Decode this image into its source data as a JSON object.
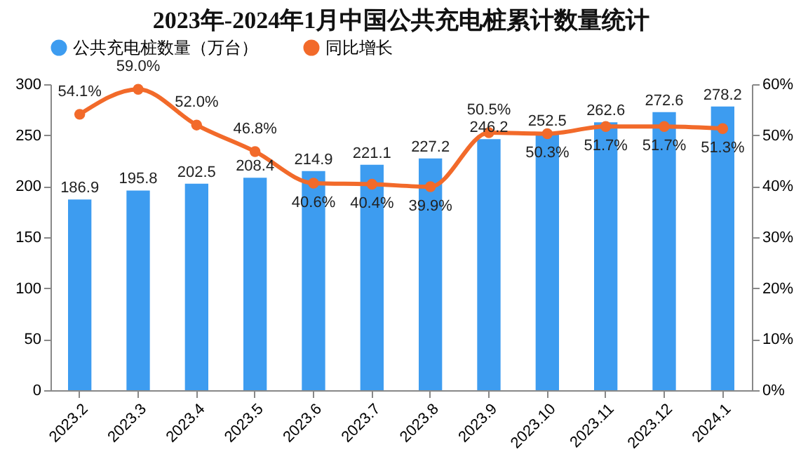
{
  "chart_data": {
    "type": "bar",
    "title": "2023年-2024年1月中国公共充电桩累计数量统计",
    "categories": [
      "2023.2",
      "2023.3",
      "2023.4",
      "2023.5",
      "2023.6",
      "2023.7",
      "2023.8",
      "2023.9",
      "2023.10",
      "2023.11",
      "2023.12",
      "2024.1"
    ],
    "series": [
      {
        "name": "公共充电桩数量（万台）",
        "color": "#3d9cf0",
        "values": [
          186.9,
          195.8,
          202.5,
          208.4,
          214.9,
          221.1,
          227.2,
          246.2,
          252.5,
          262.6,
          272.6,
          278.2
        ],
        "value_labels": [
          "186.9",
          "195.8",
          "202.5",
          "208.4",
          "214.9",
          "221.1",
          "227.2",
          "246.2",
          "252.5",
          "262.6",
          "272.6",
          "278.2"
        ]
      },
      {
        "name": "同比增长",
        "type": "line",
        "axis": "y2",
        "color": "#f26a2a",
        "values": [
          54.1,
          59.0,
          52.0,
          46.8,
          40.6,
          40.4,
          39.9,
          50.5,
          50.3,
          51.7,
          51.7,
          51.3
        ],
        "value_labels": [
          "54.1%",
          "59.0%",
          "52.0%",
          "46.8%",
          "40.6%",
          "40.4%",
          "39.9%",
          "50.5%",
          "50.3%",
          "51.7%",
          "51.7%",
          "51.3%"
        ]
      }
    ],
    "ylim": [
      0,
      300
    ],
    "yticks": [
      0,
      50,
      100,
      150,
      200,
      250,
      300
    ],
    "y2lim": [
      0,
      60
    ],
    "y2ticks": [
      {
        "value": 0,
        "label": "0%"
      },
      {
        "value": 10,
        "label": "10%"
      },
      {
        "value": 20,
        "label": "20%"
      },
      {
        "value": 30,
        "label": "30%"
      },
      {
        "value": 40,
        "label": "40%"
      },
      {
        "value": 50,
        "label": "50%"
      },
      {
        "value": 60,
        "label": "60%"
      }
    ],
    "legend": "top",
    "marker": "circle",
    "line_style": "solid"
  }
}
